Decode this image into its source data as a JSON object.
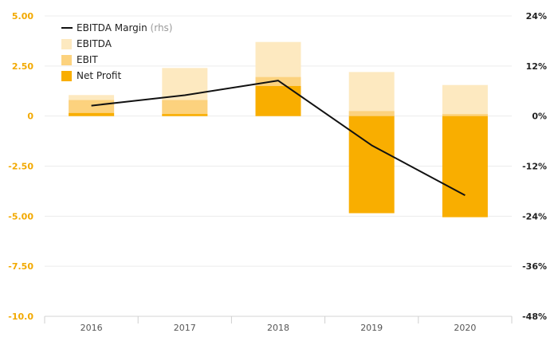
{
  "chart_data": {
    "type": "bar",
    "categories": [
      "2016",
      "2017",
      "2018",
      "2019",
      "2020"
    ],
    "series": [
      {
        "name": "EBITDA",
        "kind": "bar",
        "values": [
          1.05,
          2.4,
          3.7,
          2.2,
          1.55
        ],
        "color": "#fde9c0"
      },
      {
        "name": "EBIT",
        "kind": "bar",
        "values": [
          0.8,
          0.8,
          1.95,
          0.25,
          0.1
        ],
        "color": "#fcd27e"
      },
      {
        "name": "Net Profit",
        "kind": "bar",
        "values": [
          0.15,
          0.1,
          1.5,
          -4.85,
          -5.05
        ],
        "color": "#f9ae00"
      },
      {
        "name": "EBITDA Margin",
        "note": "(rhs)",
        "kind": "line",
        "axis": "right",
        "values": [
          2.5,
          5.0,
          8.5,
          -7.0,
          -19.0
        ],
        "color": "#111111"
      }
    ],
    "y_left": {
      "ticks": [
        "5.00",
        "2.50",
        "0",
        "-2.50",
        "-5.00",
        "-7.50",
        "-10.0"
      ],
      "ylim": [
        -10,
        5
      ],
      "color": "#f2a900"
    },
    "y_right": {
      "ticks": [
        "24%",
        "12%",
        "0%",
        "-12%",
        "-24%",
        "-36%",
        "-48%"
      ],
      "ylim": [
        -48,
        24
      ],
      "color": "#222222"
    },
    "grid": true,
    "legend_position": "top-left"
  }
}
